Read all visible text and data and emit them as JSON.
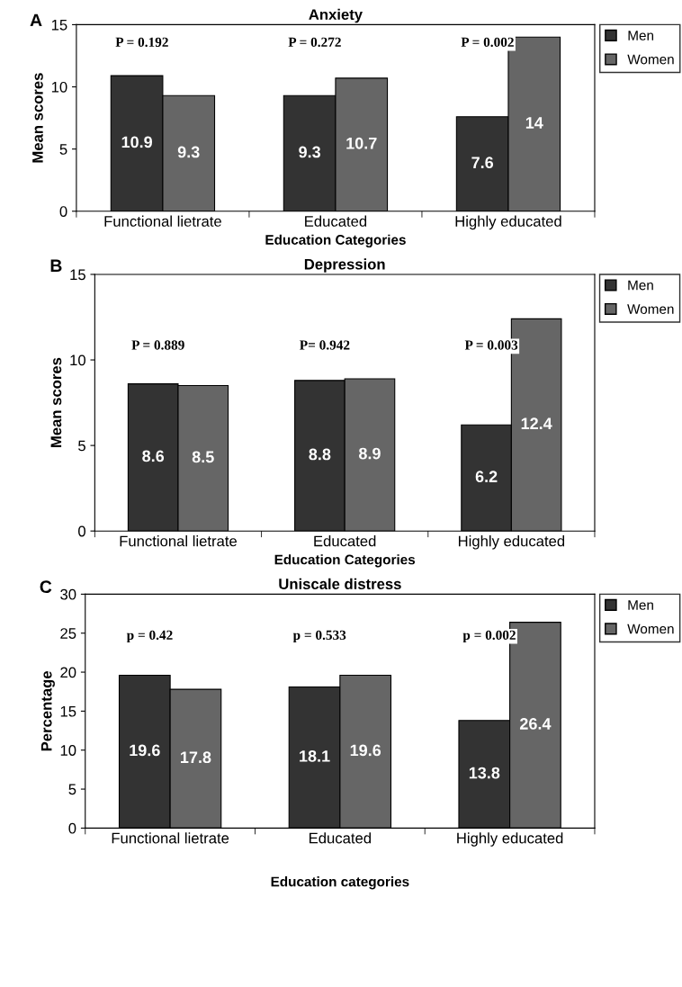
{
  "chart_data": [
    {
      "type": "bar",
      "title": "Anxiety",
      "xlabel": "Education Categories",
      "ylabel": "Mean scores",
      "categories": [
        "Functional lietrate",
        "Educated",
        "Highly educated"
      ],
      "series": [
        {
          "name": "Men",
          "color": "#333333",
          "values": [
            10.9,
            9.3,
            7.6
          ]
        },
        {
          "name": "Women",
          "color": "#666666",
          "values": [
            9.3,
            10.7,
            14
          ]
        }
      ],
      "ylim": [
        0,
        15
      ],
      "yticks": [
        0,
        5,
        10,
        15
      ],
      "data_labels": true,
      "legend": "top right",
      "grid": false,
      "annotations": [
        "A",
        "P = 0.192",
        "P = 0.272",
        "P = 0.002"
      ]
    },
    {
      "type": "bar",
      "title": "Depression",
      "xlabel": "Education Categories",
      "ylabel": "Mean scores",
      "categories": [
        "Functional lietrate",
        "Educated",
        "Highly educated"
      ],
      "series": [
        {
          "name": "Men",
          "color": "#333333",
          "values": [
            8.6,
            8.8,
            6.2
          ]
        },
        {
          "name": "Women",
          "color": "#666666",
          "values": [
            8.5,
            8.9,
            12.4
          ]
        }
      ],
      "ylim": [
        0,
        15
      ],
      "yticks": [
        0,
        5,
        10,
        15
      ],
      "data_labels": true,
      "legend": "top right",
      "grid": false,
      "annotations": [
        "B",
        "P = 0.889",
        "P= 0.942",
        "P = 0.003"
      ]
    },
    {
      "type": "bar",
      "title": "Uniscale distress",
      "xlabel": "Education categories",
      "ylabel": "Percentage",
      "categories": [
        "Functional lietrate",
        "Educated",
        "Highly educated"
      ],
      "series": [
        {
          "name": "Men",
          "color": "#333333",
          "values": [
            19.6,
            18.1,
            13.8
          ]
        },
        {
          "name": "Women",
          "color": "#666666",
          "values": [
            17.8,
            19.6,
            26.4
          ]
        }
      ],
      "ylim": [
        0,
        30
      ],
      "yticks": [
        0,
        5,
        10,
        15,
        20,
        25,
        30
      ],
      "data_labels": true,
      "legend": "top right",
      "grid": false,
      "annotations": [
        "C",
        "p = 0.42",
        "p = 0.533",
        "p = 0.002"
      ]
    }
  ]
}
